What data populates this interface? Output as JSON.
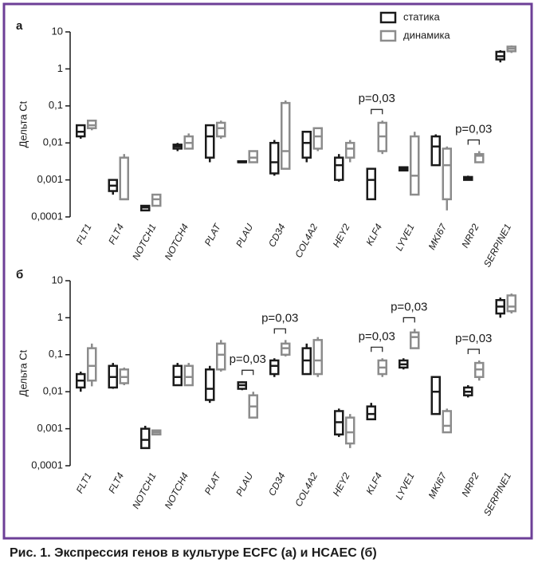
{
  "caption": "Рис. 1. Экспрессия генов в культуре ECFC (а) и HCAEC (б)",
  "chart_data": [
    {
      "type": "box",
      "panel_label": "а",
      "ylabel": "Дельта Ct",
      "log_scale": true,
      "legend": "top-right",
      "ylim": [
        0.0001,
        10
      ],
      "yticks": [
        10,
        1,
        {
          "value": 0.1,
          "label": "0,1"
        },
        {
          "value": 0.01,
          "label": "0,01"
        },
        {
          "value": 0.001,
          "label": "0,001"
        },
        {
          "value": 0.0001,
          "label": "0,0001"
        }
      ],
      "categories": [
        "FLT1",
        "FLT4",
        "NOTCH1",
        "NOTCH4",
        "PLAT",
        "PLAU",
        "CD34",
        "COL4A2",
        "HEY2",
        "KLF4",
        "LYVE1",
        "MKI67",
        "NRP2",
        "SERPINE1"
      ],
      "series": [
        {
          "name": "статика",
          "color": "#1a1a1a",
          "values": [
            {
              "min": 0.013,
              "q1": 0.015,
              "median": 0.02,
              "q3": 0.03,
              "max": 0.03
            },
            {
              "min": 0.0004,
              "q1": 0.0005,
              "median": 0.0007,
              "q3": 0.001,
              "max": 0.001
            },
            {
              "min": 0.00015,
              "q1": 0.00015,
              "median": 0.00018,
              "q3": 0.0002,
              "max": 0.0002
            },
            {
              "min": 0.006,
              "q1": 0.007,
              "median": 0.008,
              "q3": 0.009,
              "max": 0.01
            },
            {
              "min": 0.003,
              "q1": 0.004,
              "median": 0.015,
              "q3": 0.03,
              "max": 0.03
            },
            {
              "min": 0.003,
              "q1": 0.003,
              "median": 0.003,
              "q3": 0.0032,
              "max": 0.0032
            },
            {
              "min": 0.0013,
              "q1": 0.0015,
              "median": 0.003,
              "q3": 0.01,
              "max": 0.012
            },
            {
              "min": 0.003,
              "q1": 0.004,
              "median": 0.01,
              "q3": 0.02,
              "max": 0.02
            },
            {
              "min": 0.0009,
              "q1": 0.001,
              "median": 0.0025,
              "q3": 0.004,
              "max": 0.005
            },
            {
              "min": 0.0003,
              "q1": 0.0003,
              "median": 0.001,
              "q3": 0.002,
              "max": 0.002
            },
            {
              "min": 0.0017,
              "q1": 0.0018,
              "median": 0.002,
              "q3": 0.0022,
              "max": 0.0023
            },
            {
              "min": 0.0025,
              "q1": 0.0025,
              "median": 0.008,
              "q3": 0.015,
              "max": 0.017
            },
            {
              "min": 0.001,
              "q1": 0.001,
              "median": 0.0011,
              "q3": 0.0012,
              "max": 0.0013
            },
            {
              "min": 1.5,
              "q1": 1.8,
              "median": 2.2,
              "q3": 2.9,
              "max": 3.2
            }
          ]
        },
        {
          "name": "динамика",
          "color": "#8c8c8c",
          "values": [
            {
              "min": 0.022,
              "q1": 0.025,
              "median": 0.03,
              "q3": 0.04,
              "max": 0.04
            },
            {
              "min": 0.0003,
              "q1": 0.0003,
              "median": 0.0003,
              "q3": 0.004,
              "max": 0.005
            },
            {
              "min": 0.0002,
              "q1": 0.0002,
              "median": 0.0003,
              "q3": 0.0004,
              "max": 0.0004
            },
            {
              "min": 0.007,
              "q1": 0.007,
              "median": 0.01,
              "q3": 0.015,
              "max": 0.018
            },
            {
              "min": 0.013,
              "q1": 0.015,
              "median": 0.025,
              "q3": 0.035,
              "max": 0.04
            },
            {
              "min": 0.003,
              "q1": 0.003,
              "median": 0.004,
              "q3": 0.006,
              "max": 0.006
            },
            {
              "min": 0.002,
              "q1": 0.002,
              "median": 0.006,
              "q3": 0.12,
              "max": 0.14
            },
            {
              "min": 0.006,
              "q1": 0.007,
              "median": 0.015,
              "q3": 0.025,
              "max": 0.025
            },
            {
              "min": 0.003,
              "q1": 0.004,
              "median": 0.007,
              "q3": 0.01,
              "max": 0.012
            },
            {
              "min": 0.005,
              "q1": 0.006,
              "median": 0.015,
              "q3": 0.035,
              "max": 0.04
            },
            {
              "min": 0.0004,
              "q1": 0.0004,
              "median": 0.0013,
              "q3": 0.015,
              "max": 0.02
            },
            {
              "min": 0.00015,
              "q1": 0.0003,
              "median": 0.0025,
              "q3": 0.007,
              "max": 0.008
            },
            {
              "min": 0.003,
              "q1": 0.003,
              "median": 0.0045,
              "q3": 0.005,
              "max": 0.006
            },
            {
              "min": 2.7,
              "q1": 3,
              "median": 3.5,
              "q3": 4,
              "max": 4.3
            }
          ]
        }
      ],
      "annotations": [
        {
          "text": "p=0,03",
          "category": "KLF4"
        },
        {
          "text": "p=0,03",
          "category": "NRP2"
        }
      ]
    },
    {
      "type": "box",
      "panel_label": "б",
      "ylabel": "Дельта Ct",
      "log_scale": true,
      "ylim": [
        0.0001,
        10
      ],
      "yticks": [
        10,
        1,
        {
          "value": 0.1,
          "label": "0,1"
        },
        {
          "value": 0.01,
          "label": "0,01"
        },
        {
          "value": 0.001,
          "label": "0,001"
        },
        {
          "value": 0.0001,
          "label": "0,0001"
        }
      ],
      "categories": [
        "FLT1",
        "FLT4",
        "NOTCH1",
        "NOTCH4",
        "PLAT",
        "PLAU",
        "CD34",
        "COL4A2",
        "HEY2",
        "KLF4",
        "LYVE1",
        "MKI67",
        "NRP2",
        "SERPINE1"
      ],
      "series": [
        {
          "color": "#1a1a1a",
          "values": [
            {
              "min": 0.01,
              "q1": 0.013,
              "median": 0.02,
              "q3": 0.03,
              "max": 0.035
            },
            {
              "min": 0.012,
              "q1": 0.013,
              "median": 0.025,
              "q3": 0.05,
              "max": 0.06
            },
            {
              "min": 0.0003,
              "q1": 0.0003,
              "median": 0.0005,
              "q3": 0.001,
              "max": 0.0012
            },
            {
              "min": 0.015,
              "q1": 0.015,
              "median": 0.025,
              "q3": 0.05,
              "max": 0.06
            },
            {
              "min": 0.005,
              "q1": 0.006,
              "median": 0.012,
              "q3": 0.04,
              "max": 0.05
            },
            {
              "min": 0.011,
              "q1": 0.012,
              "median": 0.015,
              "q3": 0.018,
              "max": 0.019
            },
            {
              "min": 0.025,
              "q1": 0.03,
              "median": 0.05,
              "q3": 0.07,
              "max": 0.08
            },
            {
              "min": 0.03,
              "q1": 0.03,
              "median": 0.07,
              "q3": 0.15,
              "max": 0.2
            },
            {
              "min": 0.0006,
              "q1": 0.0007,
              "median": 0.0015,
              "q3": 0.003,
              "max": 0.0035
            },
            {
              "min": 0.0018,
              "q1": 0.0018,
              "median": 0.0025,
              "q3": 0.004,
              "max": 0.005
            },
            {
              "min": 0.04,
              "q1": 0.045,
              "median": 0.055,
              "q3": 0.07,
              "max": 0.08
            },
            {
              "min": 0.0025,
              "q1": 0.0025,
              "median": 0.01,
              "q3": 0.025,
              "max": 0.025
            },
            {
              "min": 0.007,
              "q1": 0.008,
              "median": 0.01,
              "q3": 0.013,
              "max": 0.015
            },
            {
              "min": 1,
              "q1": 1.3,
              "median": 2,
              "q3": 3,
              "max": 3.5
            }
          ]
        },
        {
          "color": "#8c8c8c",
          "values": [
            {
              "min": 0.014,
              "q1": 0.02,
              "median": 0.05,
              "q3": 0.15,
              "max": 0.2
            },
            {
              "min": 0.015,
              "q1": 0.017,
              "median": 0.025,
              "q3": 0.04,
              "max": 0.045
            },
            {
              "min": 0.0007,
              "q1": 0.0007,
              "median": 0.0008,
              "q3": 0.0009,
              "max": 0.0009
            },
            {
              "min": 0.015,
              "q1": 0.015,
              "median": 0.025,
              "q3": 0.05,
              "max": 0.06
            },
            {
              "min": 0.035,
              "q1": 0.04,
              "median": 0.1,
              "q3": 0.2,
              "max": 0.25
            },
            {
              "min": 0.002,
              "q1": 0.002,
              "median": 0.004,
              "q3": 0.008,
              "max": 0.01
            },
            {
              "min": 0.09,
              "q1": 0.1,
              "median": 0.15,
              "q3": 0.2,
              "max": 0.25
            },
            {
              "min": 0.025,
              "q1": 0.03,
              "median": 0.07,
              "q3": 0.25,
              "max": 0.3
            },
            {
              "min": 0.0003,
              "q1": 0.0004,
              "median": 0.0008,
              "q3": 0.002,
              "max": 0.0025
            },
            {
              "min": 0.025,
              "q1": 0.03,
              "median": 0.045,
              "q3": 0.07,
              "max": 0.08
            },
            {
              "min": 0.15,
              "q1": 0.15,
              "median": 0.3,
              "q3": 0.4,
              "max": 0.5
            },
            {
              "min": 0.0008,
              "q1": 0.0008,
              "median": 0.0012,
              "q3": 0.003,
              "max": 0.0035
            },
            {
              "min": 0.02,
              "q1": 0.025,
              "median": 0.04,
              "q3": 0.06,
              "max": 0.07
            },
            {
              "min": 1.3,
              "q1": 1.5,
              "median": 2,
              "q3": 4,
              "max": 4.5
            }
          ]
        }
      ],
      "annotations": [
        {
          "text": "p=0,03",
          "category": "PLAU"
        },
        {
          "text": "p=0,03",
          "category": "CD34"
        },
        {
          "text": "p=0,03",
          "category": "KLF4"
        },
        {
          "text": "p=0,03",
          "category": "LYVE1"
        },
        {
          "text": "p=0,03",
          "category": "NRP2"
        }
      ]
    }
  ]
}
